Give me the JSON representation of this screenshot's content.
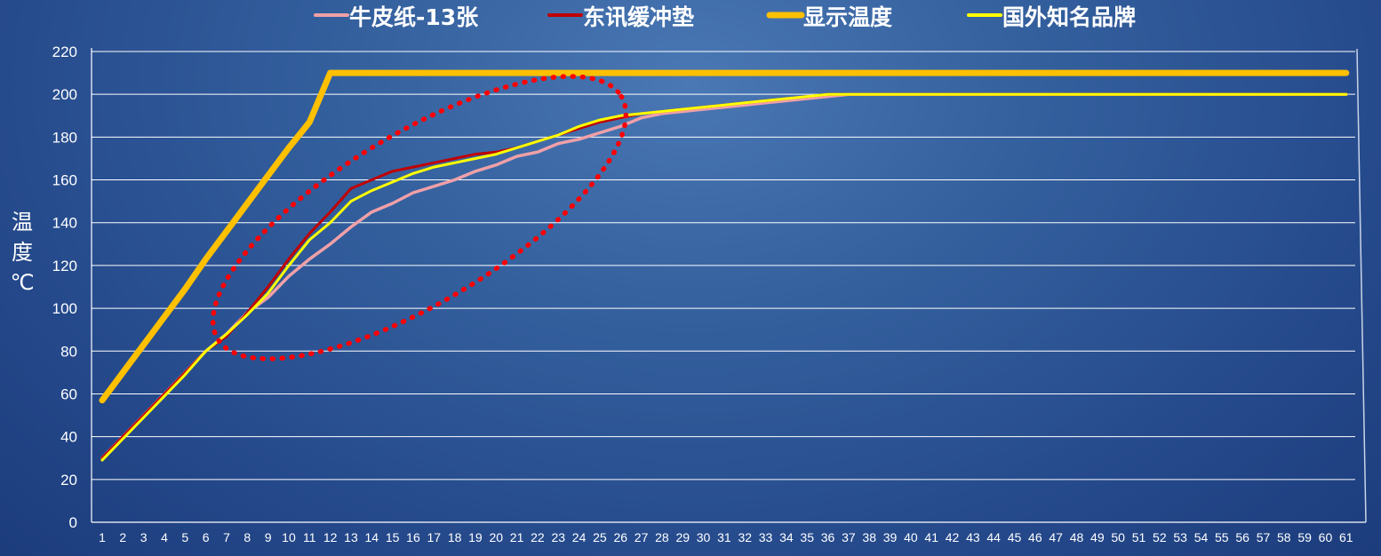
{
  "chart_data": {
    "type": "line",
    "title": "",
    "xlabel": "",
    "ylabel": "温度℃",
    "ylim": [
      0,
      220
    ],
    "yticks": [
      0,
      20,
      40,
      60,
      80,
      100,
      120,
      140,
      160,
      180,
      200,
      220
    ],
    "x": [
      1,
      2,
      3,
      4,
      5,
      6,
      7,
      8,
      9,
      10,
      11,
      12,
      13,
      14,
      15,
      16,
      17,
      18,
      19,
      20,
      21,
      22,
      23,
      24,
      25,
      26,
      27,
      28,
      29,
      30,
      31,
      32,
      33,
      34,
      35,
      36,
      37,
      38,
      39,
      40,
      41,
      42,
      43,
      44,
      45,
      46,
      47,
      48,
      49,
      50,
      51,
      52,
      53,
      54,
      55,
      56,
      57,
      58,
      59,
      60,
      61
    ],
    "grid": true,
    "legend_position": "top",
    "series": [
      {
        "name": "牛皮纸-13张",
        "color": "#f0a0a8",
        "values": [
          30,
          40,
          50,
          60,
          70,
          80,
          88,
          98,
          105,
          115,
          123,
          130,
          138,
          145,
          149,
          154,
          157,
          160,
          164,
          167,
          171,
          173,
          177,
          179,
          182,
          185,
          189,
          191,
          192,
          193,
          194,
          195,
          196,
          197,
          198,
          199,
          200,
          200,
          200,
          200,
          200,
          200,
          200,
          200,
          200,
          200,
          200,
          200,
          200,
          200,
          200,
          200,
          200,
          200,
          200,
          200,
          200,
          200,
          200,
          200,
          200
        ]
      },
      {
        "name": "东讯缓冲垫",
        "color": "#c00000",
        "values": [
          30,
          40,
          50,
          60,
          70,
          80,
          87,
          98,
          110,
          123,
          135,
          145,
          156,
          160,
          164,
          166,
          168,
          170,
          172,
          173,
          175,
          178,
          181,
          184,
          187,
          189,
          191,
          192,
          193,
          194,
          195,
          196,
          197,
          198,
          199,
          200,
          200,
          200,
          200,
          200,
          200,
          200,
          200,
          200,
          200,
          200,
          200,
          200,
          200,
          200,
          200,
          200,
          200,
          200,
          200,
          200,
          200,
          200,
          200,
          200,
          200
        ]
      },
      {
        "name": "显示温度",
        "color": "#ffc000",
        "values": [
          57,
          70,
          83,
          96,
          109,
          123,
          136,
          149,
          162,
          175,
          187,
          210,
          210,
          210,
          210,
          210,
          210,
          210,
          210,
          210,
          210,
          210,
          210,
          210,
          210,
          210,
          210,
          210,
          210,
          210,
          210,
          210,
          210,
          210,
          210,
          210,
          210,
          210,
          210,
          210,
          210,
          210,
          210,
          210,
          210,
          210,
          210,
          210,
          210,
          210,
          210,
          210,
          210,
          210,
          210,
          210,
          210,
          210,
          210,
          210,
          210
        ]
      },
      {
        "name": "国外知名品牌",
        "color": "#ffff00",
        "values": [
          29,
          39,
          49,
          59,
          69,
          80,
          88,
          97,
          107,
          120,
          132,
          140,
          150,
          155,
          159,
          163,
          166,
          168,
          170,
          172,
          175,
          178,
          181,
          185,
          188,
          190,
          191,
          192,
          193,
          194,
          195,
          196,
          197,
          198,
          199,
          200,
          200,
          200,
          200,
          200,
          200,
          200,
          200,
          200,
          200,
          200,
          200,
          200,
          200,
          200,
          200,
          200,
          200,
          200,
          200,
          200,
          200,
          200,
          200,
          200,
          200
        ]
      }
    ],
    "annotation": {
      "shape": "dotted-ellipse",
      "color": "#ff0000"
    }
  }
}
